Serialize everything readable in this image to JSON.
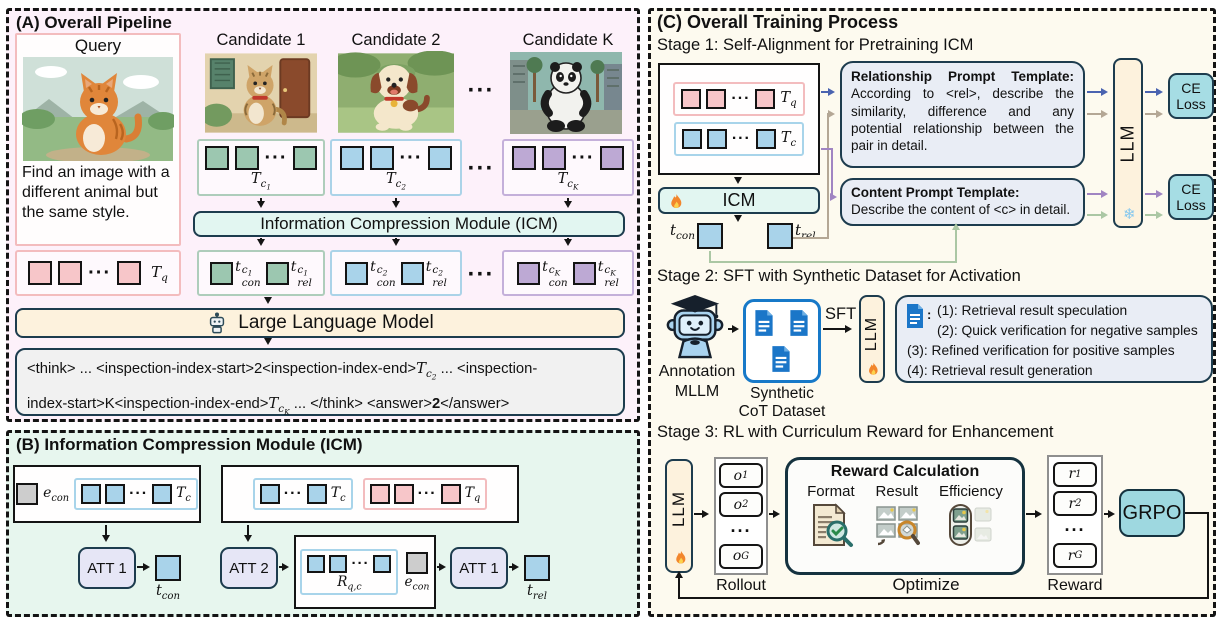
{
  "colors": {
    "panelA": "#fdf1fa",
    "panelB": "#e7f6ee",
    "panelC": "#fdfaef",
    "ink": "#1d3c4e",
    "pink": "#f7c6c9",
    "blue": "#a9d3ea",
    "green": "#9cc7b0",
    "purple": "#bda9d4",
    "gray": "#cdcdcd",
    "icm": "#e2f6f1",
    "llm": "#fdf2dd",
    "att": "#e6e6f6",
    "tmpl": "#e9edf5",
    "ce": "#a6dde4",
    "grpo": "#9ed8e0",
    "aBlue": "#4a63b0",
    "aTan": "#b4a795",
    "aPurple": "#a084c2",
    "aGreen": "#abc7a4"
  },
  "shared": {
    "ellipsis": "···"
  },
  "panelA": {
    "title": "(A) Overall Pipeline",
    "query": {
      "label": "Query",
      "text": "Find an image with a different animal but the same style.",
      "tq_html": "<i>T</i><sub>q</sub>"
    },
    "candidates": [
      {
        "label": "Candidate 1",
        "t_html": "<i>T</i><sub>c<span class='tiny'>1</span></sub>",
        "con_html": "<i>t</i><span class='ss'><span><i>c</i><span class='tiny'>1</span></span><span>con</span></span>",
        "rel_html": "<i>t</i><span class='ss'><span><i>c</i><span class='tiny'>1</span></span><span>rel</span></span>"
      },
      {
        "label": "Candidate 2",
        "t_html": "<i>T</i><sub>c<span class='tiny'>2</span></sub>",
        "con_html": "<i>t</i><span class='ss'><span><i>c</i><span class='tiny'>2</span></span><span>con</span></span>",
        "rel_html": "<i>t</i><span class='ss'><span><i>c</i><span class='tiny'>2</span></span><span>rel</span></span>"
      },
      {
        "label": "Candidate K",
        "t_html": "<i>T</i><sub>c<span class='tiny'>K</span></sub>",
        "con_html": "<i>t</i><span class='ss'><span><i>c</i><span class='tiny'>K</span></span><span>con</span></span>",
        "rel_html": "<i>t</i><span class='ss'><span><i>c</i><span class='tiny'>K</span></span><span>rel</span></span>"
      }
    ],
    "icm_bar": "Information Compression Module (ICM)",
    "llm_bar": "Large Language Model",
    "output_line1_html": "&lt;think&gt; ... &lt;inspection-index-start&gt;2&lt;inspection-index-end&gt;<span class='m'><i>T</i><sub>c<span class='tiny'>2</span></sub></span> ... &lt;inspection-",
    "output_line2_html": "index-start&gt;K&lt;inspection-index-end&gt;<span class='m'><i>T</i><sub>c<span class='tiny'>K</span></sub></span> ... &lt;/think&gt; &lt;answer&gt;<b>2</b>&lt;/answer&gt;"
  },
  "panelB": {
    "title": "(B) Information Compression Module (ICM)",
    "e_con_html": "<i>e</i><sub>con</sub>",
    "tc_html": "<i>T</i><sub>c</sub>",
    "tq_html": "<i>T</i><sub>q</sub>",
    "att1": "ATT 1",
    "att2": "ATT 2",
    "att1b": "ATT 1",
    "t_con_html": "<i>t</i><sub>con</sub>",
    "t_rel_html": "<i>t</i><sub>rel</sub>",
    "r_html": "<i>R</i><sub>q,c</sub>"
  },
  "panelC": {
    "title": "(C) Overall Training Process",
    "stage1": {
      "header": "Stage 1: Self-Alignment for Pretraining ICM",
      "tq_html": "<i>T</i><sub>q</sub>",
      "tc_html": "<i>T</i><sub>c</sub>",
      "icm": "ICM",
      "t_con_html": "<i>t</i><sub>con</sub>",
      "t_rel_html": "<i>t</i><sub>rel</sub>",
      "rel_template_title": "Relationship Prompt Template:",
      "rel_template_body_html": "According to &lt;rel&gt;, describe the similarity, difference and any potential relationship between the pair in detail.",
      "con_template_title": "Content Prompt Template:",
      "con_template_body_html": "Describe the content of &lt;c&gt; in detail.",
      "llm": "LLM",
      "ce1": "CE Loss",
      "ce2": "CE Loss",
      "snowflake": "❄"
    },
    "stage2": {
      "header": "Stage 2: SFT with Synthetic Dataset for Activation",
      "annotation_line1": "Annotation",
      "annotation_line2": "MLLM",
      "dataset_line1": "Synthetic",
      "dataset_line2": "CoT Dataset",
      "sft": "SFT",
      "llm": "LLM",
      "items": [
        "(1): Retrieval result speculation",
        "(2): Quick verification for negative samples",
        "(3): Refined verification for positive samples",
        "(4): Retrieval result generation"
      ]
    },
    "stage3": {
      "header": "Stage 3: RL with Curriculum Reward for Enhancement",
      "llm": "LLM",
      "rollout_label": "Rollout",
      "o1_html": "<i>o</i><sub>1</sub>",
      "o2_html": "<i>o</i><sub>2</sub>",
      "oG_html": "<i>o</i><sub>G</sub>",
      "rc_title": "Reward Calculation",
      "cols": [
        "Format",
        "Result",
        "Efficiency"
      ],
      "r1_html": "<i>r</i><sub>1</sub>",
      "r2_html": "<i>r</i><sub>2</sub>",
      "rG_html": "<i>r</i><sub>G</sub>",
      "reward_label": "Reward",
      "grpo": "GRPO",
      "optimize": "Optimize"
    }
  }
}
